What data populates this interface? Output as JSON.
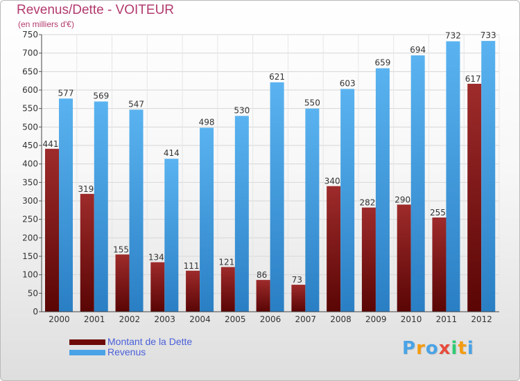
{
  "chart_data": {
    "type": "bar",
    "title": "Revenus/Dette - VOITEUR",
    "subtitle": "(en milliers d'€)",
    "categories": [
      "2000",
      "2001",
      "2002",
      "2003",
      "2004",
      "2005",
      "2006",
      "2007",
      "2008",
      "2009",
      "2010",
      "2011",
      "2012"
    ],
    "series": [
      {
        "name": "Montant de la Dette",
        "color": "#8b1a1a",
        "values": [
          441,
          319,
          155,
          134,
          111,
          121,
          86,
          73,
          340,
          282,
          290,
          255,
          617
        ]
      },
      {
        "name": "Revenus",
        "color": "#4aa3e6",
        "values": [
          577,
          569,
          547,
          414,
          498,
          530,
          621,
          550,
          603,
          659,
          694,
          732,
          733
        ]
      }
    ],
    "ylim": [
      0,
      750
    ],
    "yticks": [
      0,
      50,
      100,
      150,
      200,
      250,
      300,
      350,
      400,
      450,
      500,
      550,
      600,
      650,
      700,
      750
    ],
    "grid": true,
    "legend": "bottom-left"
  },
  "legend": {
    "debt_label": "Montant de la Dette",
    "revenue_label": "Revenus"
  },
  "logo": {
    "letters": [
      "P",
      "r",
      "o",
      "x",
      "i",
      "t",
      "i"
    ],
    "colors": [
      "#4aa3e6",
      "#f39c12",
      "#4aa3e6",
      "#e74c3c",
      "#2ecc71",
      "#f39c12",
      "#4aa3e6"
    ]
  }
}
